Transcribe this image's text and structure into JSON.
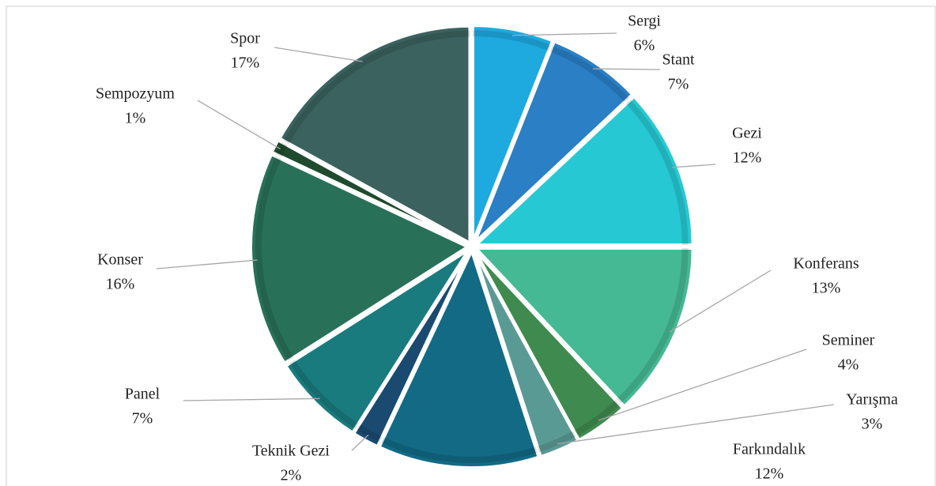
{
  "chart_data": {
    "type": "pie",
    "categories": [
      "Sergi",
      "Stant",
      "Gezi",
      "Konferans",
      "Seminer",
      "Yarışma",
      "Farkındalık",
      "Teknik Gezi",
      "Panel",
      "Konser",
      "Sempozyum",
      "Spor"
    ],
    "values": [
      6,
      7,
      12,
      13,
      4,
      3,
      12,
      2,
      7,
      16,
      1,
      17
    ],
    "value_labels": [
      "6%",
      "7%",
      "12%",
      "13%",
      "4%",
      "3%",
      "12%",
      "2%",
      "7%",
      "16%",
      "1%",
      "17%"
    ],
    "colors": [
      "#1eaadf",
      "#2a7fc5",
      "#26c9d3",
      "#45b993",
      "#3f8a4f",
      "#5a9a95",
      "#126a85",
      "#1a4a70",
      "#197b7e",
      "#287158",
      "#1f4a2e",
      "#3b625f"
    ]
  }
}
